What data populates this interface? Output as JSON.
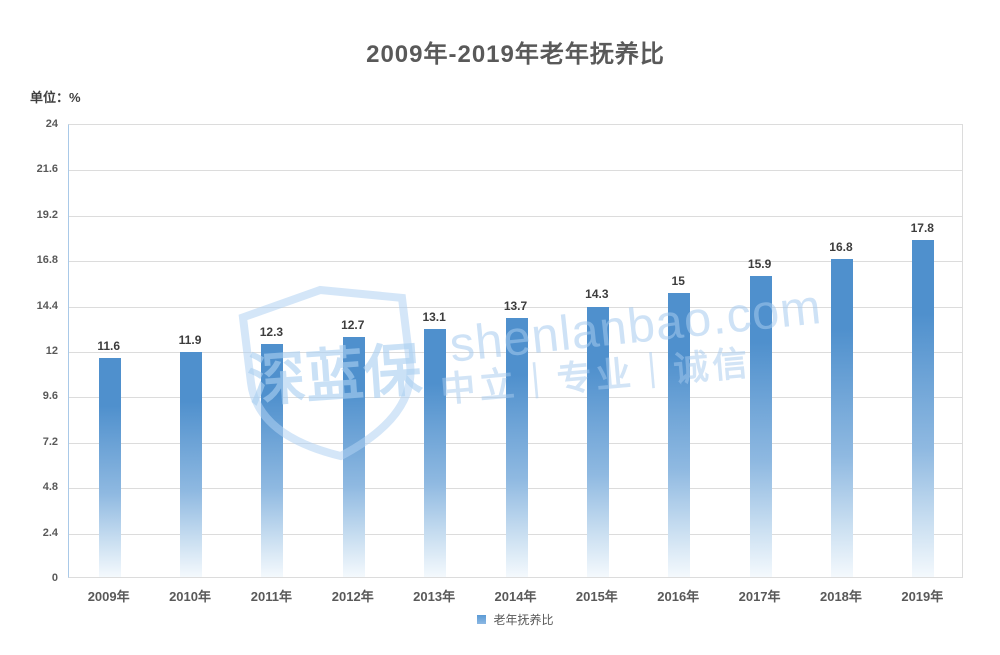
{
  "chart": {
    "title": "2009年-2019年老年抚养比",
    "unit_label": "单位：%",
    "legend": {
      "label": "老年抚养比"
    },
    "colors": {
      "bar_top": "#4f90cd",
      "bar_mid": "#8fb9e1",
      "bar_low": "#cadff1",
      "bar_bottom": "#f4f9fd",
      "grid": "#dcdcdc",
      "left_axis": "#a9c9e8",
      "tick_text": "#595959",
      "value_text": "#3d3d3d"
    }
  },
  "chart_data": {
    "type": "bar",
    "title": "2009年-2019年老年抚养比",
    "xlabel": "",
    "ylabel": "单位：%",
    "categories": [
      "2009年",
      "2010年",
      "2011年",
      "2012年",
      "2013年",
      "2014年",
      "2015年",
      "2016年",
      "2017年",
      "2018年",
      "2019年"
    ],
    "series": [
      {
        "name": "老年抚养比",
        "values": [
          11.6,
          11.9,
          12.3,
          12.7,
          13.1,
          13.7,
          14.3,
          15,
          15.9,
          16.8,
          17.8
        ]
      }
    ],
    "data_labels": [
      "11.6",
      "11.9",
      "12.3",
      "12.7",
      "13.1",
      "13.7",
      "14.3",
      "15",
      "15.9",
      "16.8",
      "17.8"
    ],
    "ylim": [
      0,
      24
    ],
    "y_ticks": [
      0,
      2.4,
      4.8,
      7.2,
      9.6,
      12,
      14.4,
      16.8,
      19.2,
      21.6,
      24
    ],
    "grid": true,
    "legend_position": "bottom"
  },
  "watermark": {
    "brand_text": "shenlanbao.com",
    "slogan": "中立｜专业｜诚信",
    "logo_text": "深蓝保"
  }
}
